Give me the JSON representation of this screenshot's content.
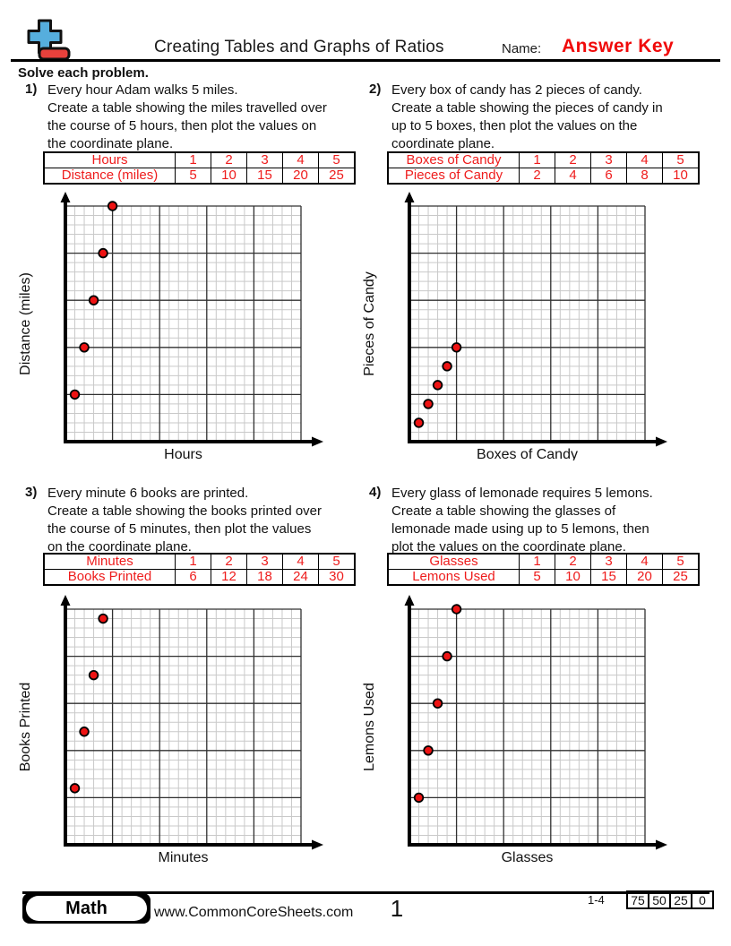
{
  "header": {
    "title": "Creating Tables and Graphs of Ratios",
    "name_label": "Name:",
    "name_value": "Answer Key",
    "instruction": "Solve each problem.",
    "logo_icon": "plus-minus-icon"
  },
  "colors": {
    "answer_red": "#f00a0a",
    "table_text": "#ee1c1c",
    "point_fill": "#ee1313",
    "logo_blue": "#56aedd",
    "logo_red": "#e8413c",
    "grid_minor": "#c9c9c9",
    "grid_major": "#303030",
    "axis": "#000000"
  },
  "problems": [
    {
      "number": "1)",
      "text_lines": [
        "Every hour Adam walks 5 miles.",
        "Create a table showing the miles travelled over",
        "the course of 5 hours, then plot the values on",
        "the coordinate plane."
      ],
      "table": {
        "row1_label": "Hours",
        "row1_values": [
          "1",
          "2",
          "3",
          "4",
          "5"
        ],
        "row2_label": "Distance (miles)",
        "row2_values": [
          "5",
          "10",
          "15",
          "20",
          "25"
        ]
      }
    },
    {
      "number": "2)",
      "text_lines": [
        "Every box of candy has 2 pieces of candy.",
        "Create a table showing the pieces of candy in",
        "up to 5 boxes, then plot the values on the",
        "coordinate plane."
      ],
      "table": {
        "row1_label": "Boxes of Candy",
        "row1_values": [
          "1",
          "2",
          "3",
          "4",
          "5"
        ],
        "row2_label": "Pieces of Candy",
        "row2_values": [
          "2",
          "4",
          "6",
          "8",
          "10"
        ]
      }
    },
    {
      "number": "3)",
      "text_lines": [
        "Every minute 6 books are printed.",
        "Create a table showing the books printed over",
        "the course of 5 minutes, then plot the values",
        "on the coordinate plane."
      ],
      "table": {
        "row1_label": "Minutes",
        "row1_values": [
          "1",
          "2",
          "3",
          "4",
          "5"
        ],
        "row2_label": "Books Printed",
        "row2_values": [
          "6",
          "12",
          "18",
          "24",
          "30"
        ]
      }
    },
    {
      "number": "4)",
      "text_lines": [
        "Every glass of lemonade requires 5 lemons.",
        "Create a table showing the glasses of",
        "lemonade made using up to 5 lemons, then",
        "plot the values on the coordinate plane."
      ],
      "table": {
        "row1_label": "Glasses",
        "row1_values": [
          "1",
          "2",
          "3",
          "4",
          "5"
        ],
        "row2_label": "Lemons Used",
        "row2_values": [
          "5",
          "10",
          "15",
          "20",
          "25"
        ]
      }
    }
  ],
  "chart_data": [
    {
      "type": "scatter",
      "title": "",
      "xlabel": "Hours",
      "ylabel": "Distance (miles)",
      "xlim": [
        0,
        25
      ],
      "ylim": [
        0,
        25
      ],
      "minor_step": 1,
      "major_step": 5,
      "grid": true,
      "points": [
        [
          1,
          5
        ],
        [
          2,
          10
        ],
        [
          3,
          15
        ],
        [
          4,
          20
        ],
        [
          5,
          25
        ]
      ]
    },
    {
      "type": "scatter",
      "title": "",
      "xlabel": "Boxes of Candy",
      "ylabel": "Pieces of Candy",
      "xlim": [
        0,
        25
      ],
      "ylim": [
        0,
        25
      ],
      "minor_step": 1,
      "major_step": 5,
      "grid": true,
      "points": [
        [
          1,
          2
        ],
        [
          2,
          4
        ],
        [
          3,
          6
        ],
        [
          4,
          8
        ],
        [
          5,
          10
        ]
      ]
    },
    {
      "type": "scatter",
      "title": "",
      "xlabel": "Minutes",
      "ylabel": "Books Printed",
      "xlim": [
        0,
        25
      ],
      "ylim": [
        0,
        25
      ],
      "minor_step": 1,
      "major_step": 5,
      "grid": true,
      "points": [
        [
          1,
          6
        ],
        [
          2,
          12
        ],
        [
          3,
          18
        ],
        [
          4,
          24
        ]
      ]
    },
    {
      "type": "scatter",
      "title": "",
      "xlabel": "Glasses",
      "ylabel": "Lemons Used",
      "xlim": [
        0,
        25
      ],
      "ylim": [
        0,
        25
      ],
      "minor_step": 1,
      "major_step": 5,
      "grid": true,
      "points": [
        [
          1,
          5
        ],
        [
          2,
          10
        ],
        [
          3,
          15
        ],
        [
          4,
          20
        ],
        [
          5,
          25
        ]
      ]
    }
  ],
  "footer": {
    "brand": "Math",
    "website": "www.CommonCoreSheets.com",
    "page_number": "1",
    "problem_range": "1-4",
    "score_values": [
      "75",
      "50",
      "25",
      "0"
    ]
  }
}
